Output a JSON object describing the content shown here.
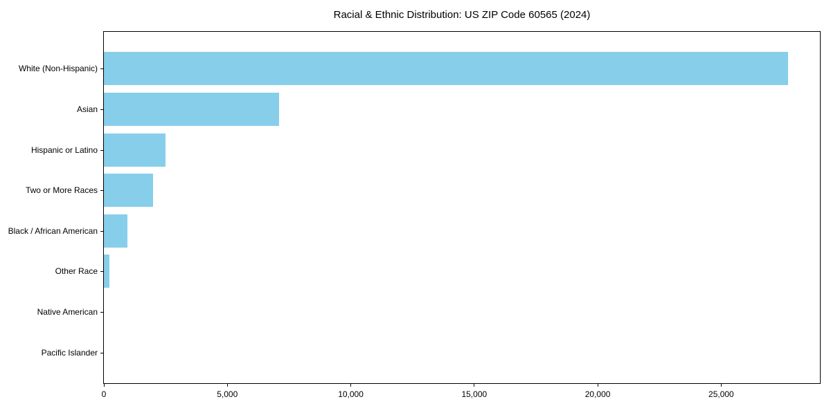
{
  "figure": {
    "title": "Racial & Ethnic Distribution: US ZIP Code 60565 (2024)",
    "background_color": "#ffffff",
    "frame_color": "#000000"
  },
  "chart_data": {
    "type": "bar",
    "orientation": "horizontal",
    "title": "Racial & Ethnic Distribution: US ZIP Code 60565 (2024)",
    "categories": [
      "White (Non-Hispanic)",
      "Asian",
      "Hispanic or Latino",
      "Two or More Races",
      "Black / African American",
      "Other Race",
      "Native American",
      "Pacific Islander"
    ],
    "values": [
      27700,
      7100,
      2500,
      2000,
      950,
      230,
      0,
      0
    ],
    "xlabel": "",
    "ylabel": "",
    "xlim": [
      0,
      29000
    ],
    "x_ticks": [
      0,
      5000,
      10000,
      15000,
      20000,
      25000
    ],
    "x_tick_labels": [
      "0",
      "5,000",
      "10,000",
      "15,000",
      "20,000",
      "25,000"
    ],
    "bar_color": "#87CEEB",
    "grid": false,
    "legend_position": "none"
  }
}
